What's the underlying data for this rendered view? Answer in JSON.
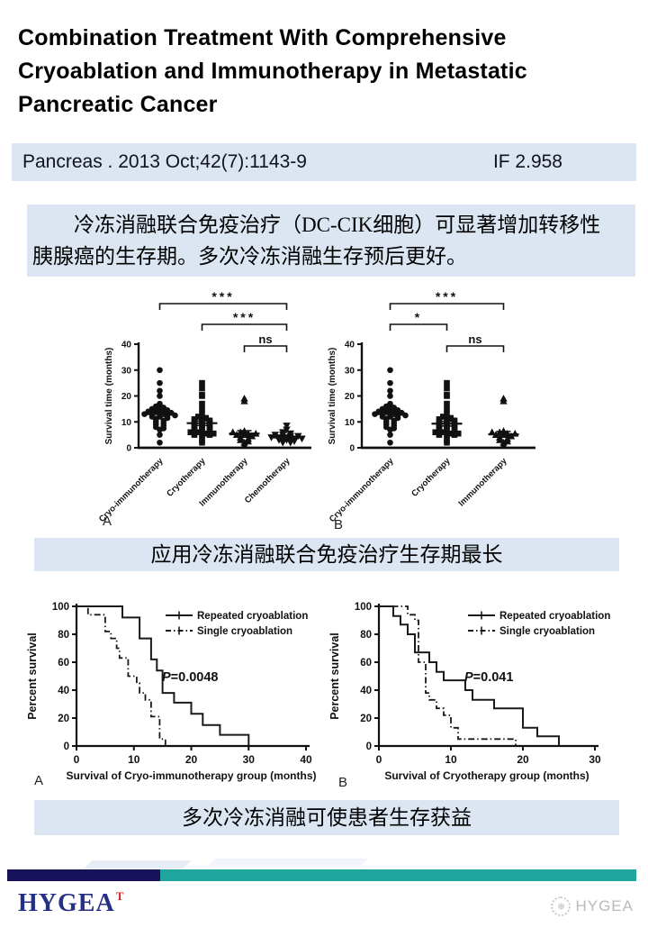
{
  "title": "Combination Treatment With Comprehensive Cryoablation and Immunotherapy in Metastatic Pancreatic Cancer",
  "citation": {
    "text": "Pancreas . 2013 Oct;42(7):1143-9",
    "impact_factor": "IF 2.958"
  },
  "summary": {
    "lines": [
      "冷冻消融联合免疫治疗（DC-CIK细胞）可显著增加转移性",
      "胰腺癌的生存期。多次冷冻消融生存预后更好。"
    ]
  },
  "caption_scatter": "应用冷冻消融联合免疫治疗生存期最长",
  "caption_km": "多次冷冻消融可使患者生存获益",
  "panel_letters": {
    "scatter_a": "A",
    "scatter_b": "B",
    "km_a": "A",
    "km_b": "B"
  },
  "footer": {
    "logo": "HYGEA",
    "logo_mark": "T",
    "watermark": "HYGEA",
    "watermark_icon": "❅",
    "navy_color": "#17125a",
    "teal_color": "#1ea69c",
    "accent_blue": "#dce6f2"
  },
  "chart_data": [
    {
      "type": "scatter",
      "panel": "A",
      "ylabel": "Survival time (months)",
      "ylim": [
        0,
        40
      ],
      "yticks": [
        0,
        10,
        20,
        30,
        40
      ],
      "groups": [
        {
          "label": "Cryo-immunotherapy",
          "marker": "circle",
          "mean": 13,
          "sem": 0.9,
          "values": [
            30,
            25,
            22,
            20,
            17,
            16,
            15.5,
            15,
            15,
            14.5,
            14,
            14,
            13.5,
            13.5,
            13,
            13,
            13,
            12.5,
            12.5,
            12,
            12,
            11.5,
            11,
            10.5,
            10,
            9.5,
            9,
            8.5,
            8,
            7.5,
            7,
            5,
            2
          ]
        },
        {
          "label": "Cryotherapy",
          "marker": "square",
          "mean": 9.5,
          "sem": 0.9,
          "values": [
            25,
            23,
            20.5,
            20,
            17,
            15,
            13,
            12,
            11.5,
            11,
            11,
            10.5,
            10,
            10,
            9.5,
            9,
            9,
            8.5,
            8,
            8,
            7.5,
            7,
            7,
            6.5,
            6,
            6,
            5.5,
            5.5,
            5,
            5,
            5,
            3,
            2
          ]
        },
        {
          "label": "Immunotherapy",
          "marker": "triangle-up",
          "mean": 5.5,
          "sem": 1.1,
          "values": [
            19,
            18,
            6.5,
            6,
            6,
            5.5,
            5.5,
            5,
            5,
            4.5,
            4,
            3.5,
            3,
            2.5,
            2,
            1
          ]
        },
        {
          "label": "Chemotherapy",
          "marker": "triangle-down",
          "mean": 4,
          "sem": 0.6,
          "values": [
            8.5,
            7,
            6,
            5.5,
            5,
            5,
            4.5,
            4.5,
            4,
            4,
            4,
            3.5,
            3.5,
            3,
            3,
            2.5,
            2,
            2
          ]
        }
      ],
      "brackets": [
        {
          "from": 0,
          "to": 3,
          "label": "***"
        },
        {
          "from": 1,
          "to": 3,
          "label": "***"
        },
        {
          "from": 2,
          "to": 3,
          "label": "ns"
        }
      ]
    },
    {
      "type": "scatter",
      "panel": "B",
      "ylabel": "Survival time (months)",
      "ylim": [
        0,
        40
      ],
      "yticks": [
        0,
        10,
        20,
        30,
        40
      ],
      "groups": [
        {
          "label": "Cryo-immunotherapy",
          "marker": "circle",
          "mean": 13,
          "sem": 0.9,
          "values": [
            30,
            25,
            22,
            20,
            17,
            16,
            15.5,
            15,
            15,
            14.5,
            14,
            14,
            13.5,
            13.5,
            13,
            13,
            13,
            12.5,
            12.5,
            12,
            12,
            11.5,
            11,
            10.5,
            10,
            9.5,
            9,
            8.5,
            8,
            7.5,
            7,
            5,
            2
          ]
        },
        {
          "label": "Cryotherapy",
          "marker": "square",
          "mean": 9.3,
          "sem": 0.9,
          "values": [
            25,
            23,
            20.5,
            20,
            17,
            15,
            13,
            12,
            11.5,
            11,
            11,
            10.5,
            10,
            10,
            9.5,
            9,
            9,
            8.5,
            8,
            8,
            7.5,
            7,
            7,
            6.5,
            6,
            6,
            5.5,
            5.5,
            5,
            5,
            5,
            3,
            2
          ]
        },
        {
          "label": "Immunotherapy",
          "marker": "triangle-up",
          "mean": 5.2,
          "sem": 1.1,
          "values": [
            19,
            18,
            6.5,
            6,
            6,
            5.5,
            5.5,
            5,
            5,
            4.5,
            4,
            3.5,
            3,
            2.5,
            2,
            1
          ]
        }
      ],
      "brackets": [
        {
          "from": 0,
          "to": 2,
          "label": "***"
        },
        {
          "from": 0,
          "to": 1,
          "label": "*"
        },
        {
          "from": 1,
          "to": 2,
          "label": "ns"
        }
      ]
    },
    {
      "type": "line",
      "panel": "A",
      "ylabel": "Percent survival",
      "xlabel": "Survival of Cryo-immunotherapy group (months)",
      "xlim": [
        0,
        40
      ],
      "xticks": [
        0,
        10,
        20,
        30,
        40
      ],
      "ylim": [
        0,
        100
      ],
      "yticks": [
        0,
        20,
        40,
        60,
        80,
        100
      ],
      "p_label": "P=0.0048",
      "legend_position": "top-right",
      "series": [
        {
          "name": "Repeated cryoablation",
          "style": "solid",
          "points": [
            [
              0,
              100
            ],
            [
              8,
              100
            ],
            [
              8,
              92
            ],
            [
              11,
              92
            ],
            [
              11,
              77
            ],
            [
              13,
              77
            ],
            [
              13,
              62
            ],
            [
              14,
              62
            ],
            [
              14,
              54
            ],
            [
              15,
              54
            ],
            [
              15,
              38
            ],
            [
              17,
              38
            ],
            [
              17,
              31
            ],
            [
              20,
              31
            ],
            [
              20,
              23
            ],
            [
              22,
              23
            ],
            [
              22,
              15
            ],
            [
              25,
              15
            ],
            [
              25,
              8
            ],
            [
              30,
              8
            ],
            [
              30,
              0
            ]
          ]
        },
        {
          "name": "Single cryoablation",
          "style": "dashdot",
          "points": [
            [
              0,
              100
            ],
            [
              2,
              100
            ],
            [
              2,
              94
            ],
            [
              5,
              94
            ],
            [
              5,
              82
            ],
            [
              6,
              82
            ],
            [
              6,
              77
            ],
            [
              7,
              77
            ],
            [
              7,
              70
            ],
            [
              7.5,
              70
            ],
            [
              7.5,
              63
            ],
            [
              9,
              63
            ],
            [
              9,
              50
            ],
            [
              10.5,
              50
            ],
            [
              10.5,
              45
            ],
            [
              11,
              45
            ],
            [
              11,
              38
            ],
            [
              12,
              38
            ],
            [
              12,
              33
            ],
            [
              13,
              33
            ],
            [
              13,
              21
            ],
            [
              14.5,
              21
            ],
            [
              14.5,
              5
            ],
            [
              15.5,
              5
            ],
            [
              15.5,
              0
            ]
          ]
        }
      ]
    },
    {
      "type": "line",
      "panel": "B",
      "ylabel": "Percent survival",
      "xlabel": "Survival of Cryotherapy group (months)",
      "xlim": [
        0,
        30
      ],
      "xticks": [
        0,
        10,
        20,
        30
      ],
      "ylim": [
        0,
        100
      ],
      "yticks": [
        0,
        20,
        40,
        60,
        80,
        100
      ],
      "p_label": "P=0.041",
      "legend_position": "top-right",
      "series": [
        {
          "name": "Repeated cryoablation",
          "style": "solid",
          "points": [
            [
              0,
              100
            ],
            [
              2,
              100
            ],
            [
              2,
              93
            ],
            [
              3,
              93
            ],
            [
              3,
              87
            ],
            [
              4,
              87
            ],
            [
              4,
              80
            ],
            [
              5,
              80
            ],
            [
              5,
              67
            ],
            [
              7,
              67
            ],
            [
              7,
              60
            ],
            [
              8,
              60
            ],
            [
              8,
              53
            ],
            [
              9,
              53
            ],
            [
              9,
              47
            ],
            [
              12,
              47
            ],
            [
              12,
              40
            ],
            [
              13,
              40
            ],
            [
              13,
              33
            ],
            [
              16,
              33
            ],
            [
              16,
              27
            ],
            [
              20,
              27
            ],
            [
              20,
              13
            ],
            [
              22,
              13
            ],
            [
              22,
              7
            ],
            [
              25,
              7
            ],
            [
              25,
              0
            ]
          ]
        },
        {
          "name": "Single cryoablation",
          "style": "dashdot",
          "points": [
            [
              0,
              100
            ],
            [
              4,
              100
            ],
            [
              4,
              94
            ],
            [
              5,
              94
            ],
            [
              5,
              90
            ],
            [
              5.5,
              90
            ],
            [
              5.5,
              60
            ],
            [
              6.5,
              60
            ],
            [
              6.5,
              38
            ],
            [
              7,
              38
            ],
            [
              7,
              33
            ],
            [
              8,
              33
            ],
            [
              8,
              27
            ],
            [
              9,
              27
            ],
            [
              9,
              22
            ],
            [
              10,
              22
            ],
            [
              10,
              13
            ],
            [
              11,
              13
            ],
            [
              11,
              5
            ],
            [
              12,
              5
            ],
            [
              19,
              5
            ],
            [
              19,
              0
            ]
          ]
        }
      ]
    }
  ]
}
